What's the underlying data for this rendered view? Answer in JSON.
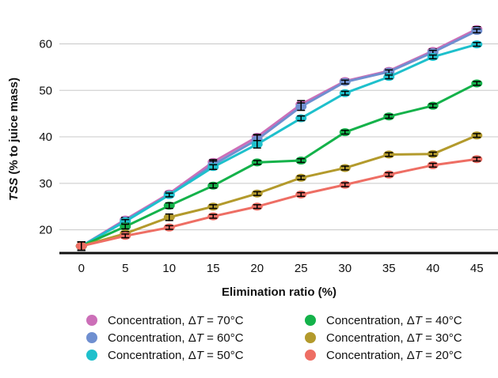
{
  "chart_data": {
    "type": "line",
    "xlabel": "Elimination ratio (%)",
    "ylabel": {
      "italic_part": "TSS",
      "rest": " (% to juice mass)"
    },
    "x": [
      0,
      5,
      10,
      15,
      20,
      25,
      30,
      35,
      40,
      45
    ],
    "xlim": [
      -2.5,
      47.5
    ],
    "ylim": [
      15,
      64
    ],
    "yticks": [
      20,
      30,
      40,
      50,
      60
    ],
    "grid": "horizontal",
    "legend_position": "bottom",
    "series": [
      {
        "name": "Concentration, ΔT = 70°C",
        "legend_prefix": "Concentration, Δ",
        "legend_var": "T",
        "legend_suffix": " = 70°C",
        "color": "#cc6fb8",
        "values": [
          16.5,
          22.2,
          27.8,
          34.6,
          40.0,
          47.0,
          52.0,
          54.2,
          58.5,
          63.2
        ],
        "error": [
          0.9,
          0.5,
          0.4,
          0.5,
          0.5,
          0.8,
          0.4,
          0.4,
          0.4,
          0.5
        ]
      },
      {
        "name": "Concentration, ΔT = 60°C",
        "legend_prefix": "Concentration, Δ",
        "legend_var": "T",
        "legend_suffix": " = 60°C",
        "color": "#6f8fd0",
        "values": [
          16.5,
          22.0,
          27.5,
          34.0,
          39.4,
          46.5,
          51.8,
          54.0,
          58.2,
          62.8
        ],
        "error": [
          0.9,
          0.5,
          0.4,
          0.8,
          1.0,
          0.8,
          0.4,
          0.4,
          0.4,
          0.4
        ]
      },
      {
        "name": "Concentration, ΔT = 50°C",
        "legend_prefix": "Concentration, Δ",
        "legend_var": "T",
        "legend_suffix": " = 50°C",
        "color": "#1ec0cc",
        "values": [
          16.5,
          21.8,
          27.5,
          33.5,
          38.4,
          44.0,
          49.4,
          52.9,
          57.2,
          59.9
        ],
        "error": [
          0.9,
          0.4,
          0.4,
          0.5,
          0.8,
          0.5,
          0.4,
          0.4,
          0.4,
          0.4
        ]
      },
      {
        "name": "Concentration, ΔT = 40°C",
        "legend_prefix": "Concentration, Δ",
        "legend_var": "T",
        "legend_suffix": " = 40°C",
        "color": "#14b24a",
        "values": [
          16.5,
          20.7,
          25.2,
          29.5,
          34.5,
          34.9,
          41.0,
          44.4,
          46.7,
          51.5
        ],
        "error": [
          0.9,
          0.5,
          0.6,
          0.5,
          0.4,
          0.4,
          0.4,
          0.4,
          0.4,
          0.4
        ]
      },
      {
        "name": "Concentration, ΔT = 30°C",
        "legend_prefix": "Concentration, Δ",
        "legend_var": "T",
        "legend_suffix": " = 30°C",
        "color": "#b39a2c",
        "values": [
          16.5,
          19.2,
          22.7,
          25.0,
          27.8,
          31.2,
          33.3,
          36.2,
          36.3,
          40.3
        ],
        "error": [
          0.9,
          0.4,
          0.7,
          0.4,
          0.4,
          0.4,
          0.4,
          0.4,
          0.4,
          0.4
        ]
      },
      {
        "name": "Concentration, ΔT = 20°C",
        "legend_prefix": "Concentration, Δ",
        "legend_var": "T",
        "legend_suffix": " = 20°C",
        "color": "#ee6e64",
        "values": [
          16.5,
          18.7,
          20.5,
          22.9,
          25.0,
          27.6,
          29.7,
          31.9,
          33.9,
          35.2
        ],
        "error": [
          0.9,
          0.4,
          0.4,
          0.4,
          0.4,
          0.4,
          0.4,
          0.4,
          0.4,
          0.4
        ]
      }
    ]
  }
}
